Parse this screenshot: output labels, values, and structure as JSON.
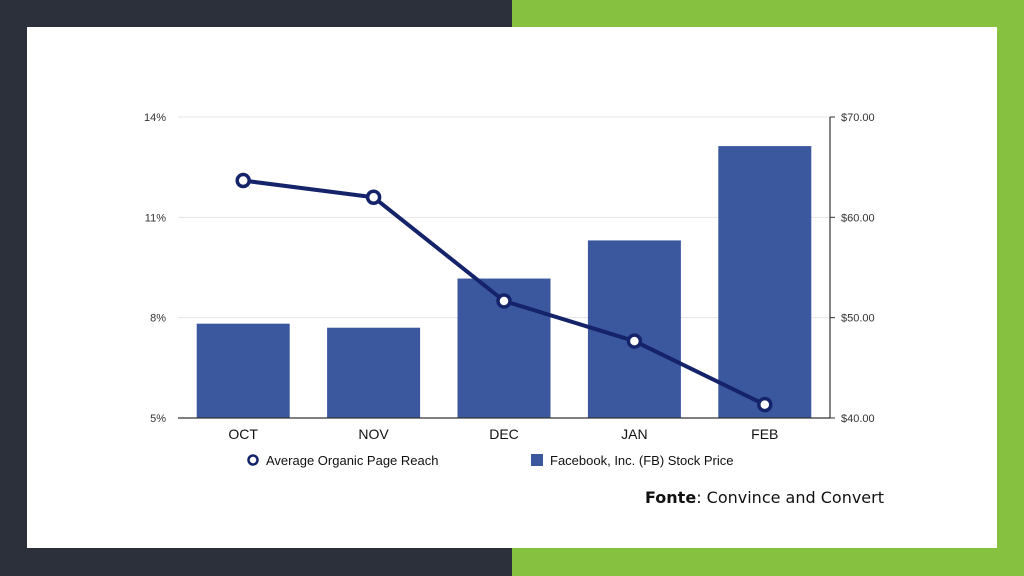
{
  "chart_data": {
    "type": "bar",
    "categories": [
      "OCT",
      "NOV",
      "DEC",
      "JAN",
      "FEB"
    ],
    "series": [
      {
        "name": "Facebook, Inc. (FB) Stock Price",
        "kind": "bar",
        "axis": "right",
        "color": "#3b589e",
        "values": [
          49.4,
          49.0,
          53.9,
          57.7,
          67.1
        ]
      },
      {
        "name": "Average Organic Page Reach",
        "kind": "line",
        "axis": "left",
        "color": "#15236a",
        "values": [
          12.1,
          11.6,
          8.5,
          7.3,
          5.4
        ]
      }
    ],
    "y_left": {
      "ticks": [
        "14%",
        "11%",
        "8%",
        "5%"
      ],
      "tick_values": [
        14,
        11,
        8,
        5
      ],
      "ylim": [
        5,
        14
      ]
    },
    "y_right": {
      "ticks": [
        "$70.00",
        "$60.00",
        "$50.00",
        "$40.00"
      ],
      "tick_values": [
        70,
        60,
        50,
        40
      ],
      "ylim": [
        40,
        70
      ]
    },
    "grid": true,
    "legend_position": "bottom"
  },
  "source": {
    "label": "Fonte",
    "text": ": Convince and Convert"
  },
  "colors": {
    "left_band": "#2b303a",
    "right_band": "#86c13f"
  }
}
